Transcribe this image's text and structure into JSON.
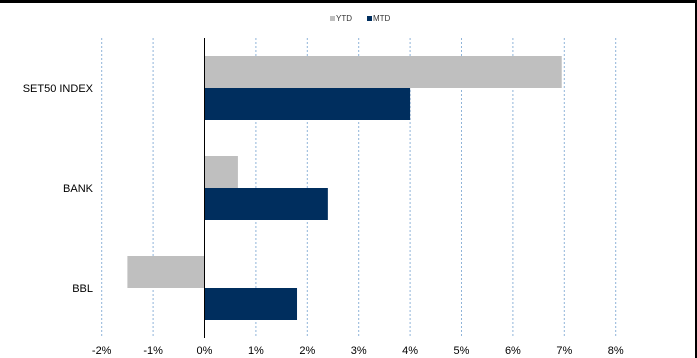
{
  "chart_data": {
    "type": "bar",
    "orientation": "horizontal",
    "categories": [
      "SET50 INDEX",
      "BANK",
      "BBL"
    ],
    "series": [
      {
        "name": "YTD",
        "values": [
          6.95,
          0.65,
          -1.5
        ],
        "color": "#bfbfbf"
      },
      {
        "name": "MTD",
        "values": [
          4.0,
          2.4,
          1.8
        ],
        "color": "#002e5e"
      }
    ],
    "x_ticks": [
      "-2%",
      "-1%",
      "0%",
      "1%",
      "2%",
      "3%",
      "4%",
      "5%",
      "6%",
      "7%",
      "8%"
    ],
    "xlim": [
      -2,
      8
    ],
    "grid": "vertical dashed",
    "legend_position": "top",
    "title": "",
    "xlabel": "",
    "ylabel": ""
  }
}
